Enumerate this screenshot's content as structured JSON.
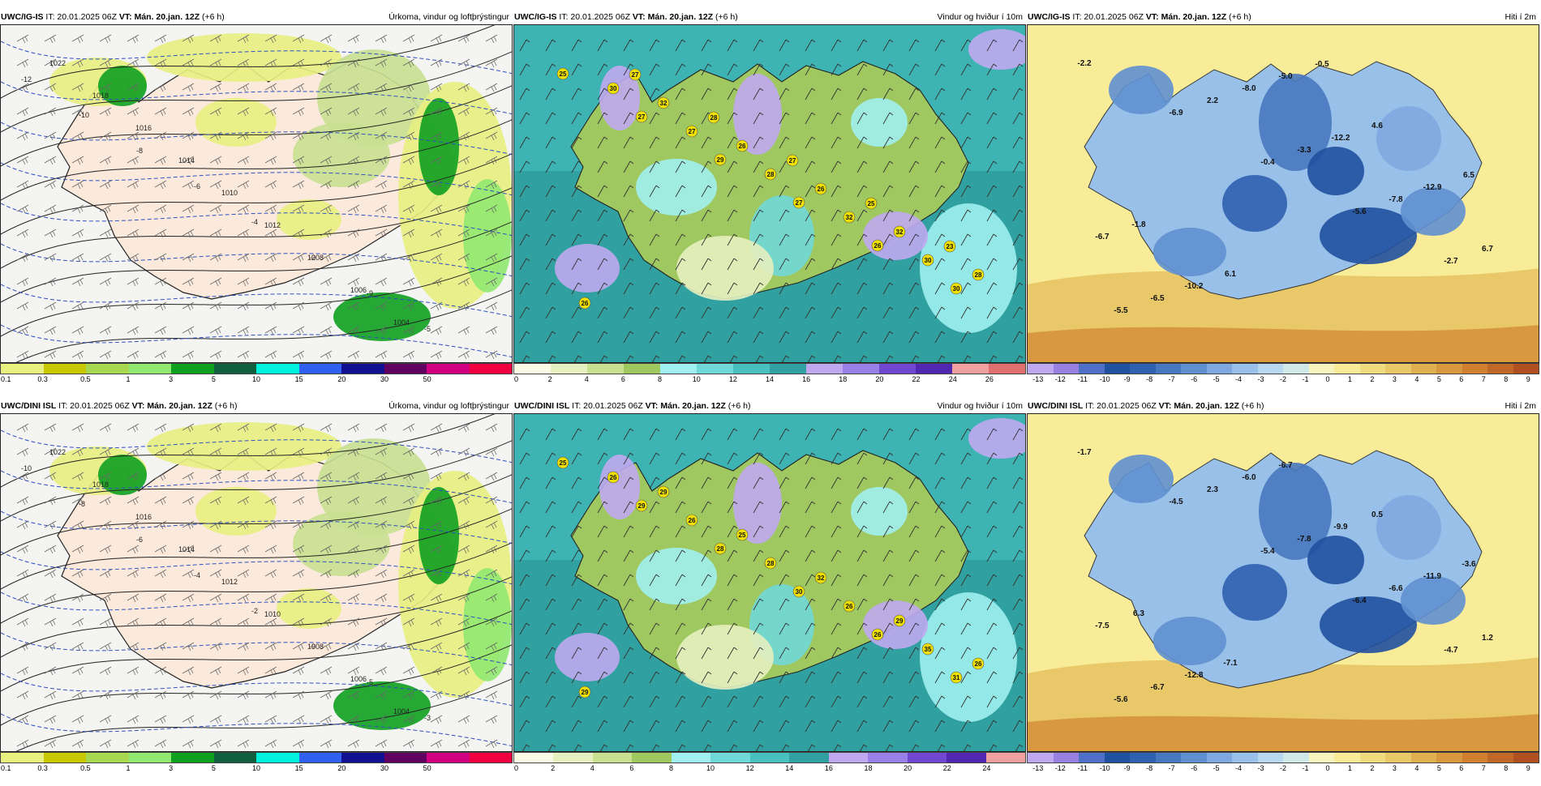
{
  "rows": [
    {
      "model": "UWC/IG-IS",
      "panels": [
        {
          "type": "precip",
          "it": "IT: 20.01.2025 06Z",
          "vt_label": "VT:",
          "vt_value": "Mán. 20.jan. 12Z",
          "lead": "(+6 h)",
          "title": "Úrkoma, vindur og loftþrýstingur",
          "isobars": [
            "1022",
            "1018",
            "1016",
            "1014",
            "1010",
            "1012",
            "1008",
            "1006",
            "1004"
          ],
          "isotherms": [
            "-12",
            "-10",
            "-8",
            "-6",
            "-4",
            "-2",
            "-9",
            "-5"
          ]
        },
        {
          "type": "wind",
          "it": "IT: 20.01.2025 06Z",
          "vt_label": "VT:",
          "vt_value": "Mán. 20.jan. 12Z",
          "lead": "(+6 h)",
          "title": "Vindur og hviður í 10m",
          "gusts": [
            "25",
            "27",
            "29",
            "27",
            "26",
            "30",
            "30",
            "27",
            "28",
            "32",
            "30",
            "26",
            "32",
            "26",
            "26",
            "32",
            "28",
            "27",
            "28",
            "27",
            "25",
            "23"
          ]
        },
        {
          "type": "temp",
          "it": "IT: 20.01.2025 06Z",
          "vt_label": "VT:",
          "vt_value": "Mán. 20.jan. 12Z",
          "lead": "(+6 h)",
          "title": "Hiti í 2m",
          "temps": [
            "-2.2",
            "-6.9",
            "-0.4",
            "-5.6",
            "-2.7",
            "-5.5",
            "2.2",
            "-3.3",
            "-7.8",
            "6.7",
            "-6.5",
            "-8.0",
            "-12.2",
            "-12.9",
            "-6.7",
            "-10.2",
            "-5.0",
            "4.6",
            "6.5",
            "-1.8",
            "6.1",
            "-0.5"
          ]
        }
      ]
    },
    {
      "model": "UWC/DINI ISL",
      "panels": [
        {
          "type": "precip",
          "it": "IT: 20.01.2025 06Z",
          "vt_label": "VT:",
          "vt_value": "Mán. 20.jan. 12Z",
          "lead": "(+6 h)",
          "title": "Úrkoma, vindur og loftþrýstingur",
          "isobars": [
            "1022",
            "1018",
            "1016",
            "1014",
            "1012",
            "1010",
            "1008",
            "1006",
            "1004"
          ],
          "isotherms": [
            "-10",
            "-8",
            "-6",
            "-4",
            "-2",
            "-9",
            "-5",
            "-3"
          ]
        },
        {
          "type": "wind",
          "it": "IT: 20.01.2025 06Z",
          "vt_label": "VT:",
          "vt_value": "Mán. 20.jan. 12Z",
          "lead": "(+6 h)",
          "title": "Vindur og hviður í 10m",
          "gusts": [
            "25",
            "29",
            "28",
            "30",
            "26",
            "31",
            "26",
            "26",
            "28",
            "26",
            "35",
            "29",
            "29",
            "25",
            "32",
            "29",
            "26"
          ]
        },
        {
          "type": "temp",
          "it": "IT: 20.01.2025 06Z",
          "vt_label": "VT:",
          "vt_value": "Mán. 20.jan. 12Z",
          "lead": "(+6 h)",
          "title": "Hiti í 2m",
          "temps": [
            "-1.7",
            "-4.5",
            "-5.4",
            "-6.4",
            "-4.7",
            "-5.6",
            "2.3",
            "-7.8",
            "-6.6",
            "1.2",
            "-6.7",
            "-6.0",
            "-9.9",
            "-11.9",
            "-7.5",
            "-12.8",
            "-6.7",
            "0.5",
            "-3.6",
            "6.3",
            "-7.1"
          ]
        }
      ]
    }
  ],
  "colorbars": {
    "precip": {
      "colors": [
        "#e8f080",
        "#c8c800",
        "#a8d850",
        "#90e870",
        "#10a020",
        "#106040",
        "#00f0e0",
        "#3060f0",
        "#101090",
        "#600060",
        "#d00080",
        "#f00040"
      ],
      "labels": [
        "0.1",
        "0.3",
        "0.5",
        "1",
        "3",
        "5",
        "10",
        "15",
        "20",
        "30",
        "50"
      ]
    },
    "wind": {
      "colors": [
        "#fafae6",
        "#e6f0c0",
        "#c8e090",
        "#a0c860",
        "#a0f0f0",
        "#70d8d8",
        "#48c0c0",
        "#30a0a0",
        "#c0a8f0",
        "#9880e8",
        "#7048d0",
        "#5028b0",
        "#f0a0a0",
        "#e07070"
      ],
      "labels": [
        "0",
        "2",
        "4",
        "6",
        "8",
        "10",
        "12",
        "14",
        "16",
        "18",
        "20",
        "22",
        "24",
        "26"
      ]
    },
    "wind2": {
      "colors": [
        "#fafae6",
        "#e6f0c0",
        "#c8e090",
        "#a0c860",
        "#a0f0f0",
        "#70d8d8",
        "#48c0c0",
        "#30a0a0",
        "#c0a8f0",
        "#9880e8",
        "#7048d0",
        "#5028b0",
        "#f0a0a0"
      ],
      "labels": [
        "0",
        "2",
        "4",
        "6",
        "8",
        "10",
        "12",
        "14",
        "16",
        "18",
        "20",
        "22",
        "24"
      ]
    },
    "temp": {
      "colors": [
        "#c0a8f0",
        "#9880e0",
        "#5070c8",
        "#2050a0",
        "#3060b0",
        "#4878c0",
        "#6090d0",
        "#80a8e0",
        "#98c0e8",
        "#b8d8f0",
        "#d0e8e8",
        "#f8f4c0",
        "#f8ec98",
        "#f0dc80",
        "#e8c868",
        "#e0b050",
        "#d89840",
        "#d08030",
        "#c06828",
        "#b05020"
      ],
      "labels": [
        "-13",
        "-12",
        "-11",
        "-10",
        "-9",
        "-8",
        "-7",
        "-6",
        "-5",
        "-4",
        "-3",
        "-2",
        "-1",
        "0",
        "1",
        "2",
        "3",
        "4",
        "5",
        "6",
        "7",
        "8",
        "9"
      ]
    }
  }
}
